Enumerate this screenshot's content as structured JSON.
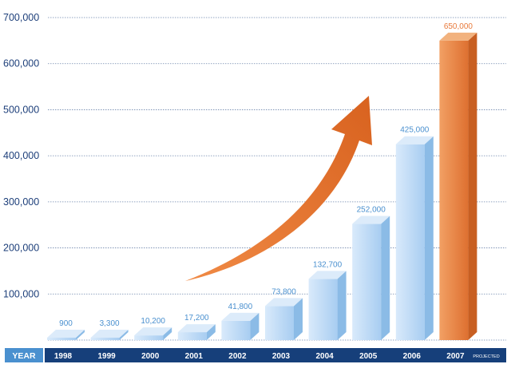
{
  "chart_data": {
    "type": "bar",
    "xlabel": "YEAR",
    "ylabel": "",
    "title": "",
    "categories": [
      "1998",
      "1999",
      "2000",
      "2001",
      "2002",
      "2003",
      "2004",
      "2005",
      "2006",
      "2007"
    ],
    "values": [
      900,
      3300,
      10200,
      17200,
      41800,
      73800,
      132700,
      252000,
      425000,
      650000
    ],
    "value_labels": [
      "900",
      "3,300",
      "10,200",
      "17,200",
      "41,800",
      "73,800",
      "132,700",
      "252,000",
      "425,000",
      "650,000"
    ],
    "y_ticks": [
      "100,000",
      "200,000",
      "300,000",
      "400,000",
      "500,000",
      "600,000",
      "700,000"
    ],
    "y_tick_values": [
      100000,
      200000,
      300000,
      400000,
      500000,
      600000,
      700000
    ],
    "ylim": [
      0,
      700000
    ],
    "grid": true,
    "projected_category": "2007",
    "projected_note": "PROJECTED",
    "colors": {
      "bar_front": "#b9d8f5",
      "bar_top": "#dcebfa",
      "bar_side": "#8bbbe6",
      "projected_front": "#e9843f",
      "projected_top": "#f2b27e",
      "projected_side": "#c85f22",
      "arrow": "#e0742f",
      "axis_band": "#163f7a",
      "axis_title_band": "#4a90cf",
      "gridline": "#6f87ad",
      "tick_text": "#1d3f7a",
      "value_label": "#4a90cf",
      "projected_label": "#e8793a"
    },
    "arrow": {
      "direction": "up-right",
      "icon": "growth-arrow"
    }
  }
}
